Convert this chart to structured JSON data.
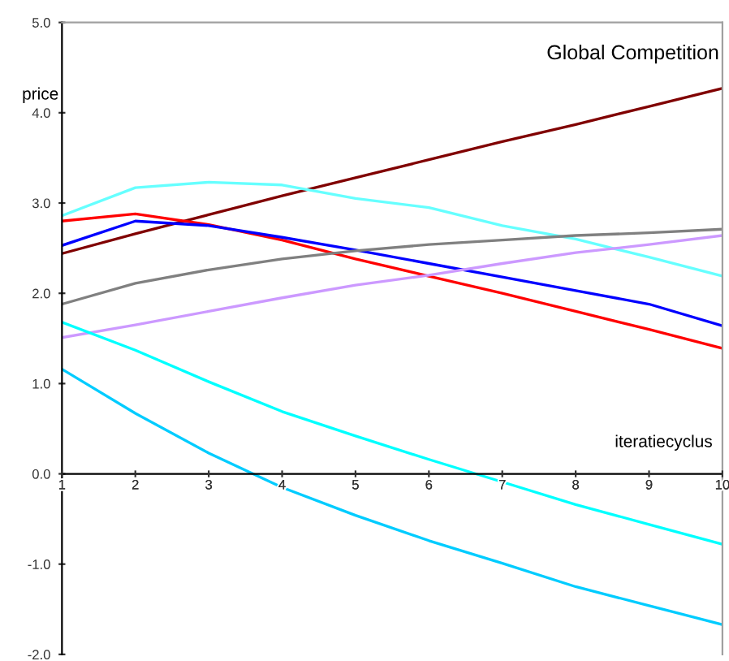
{
  "chart_data": {
    "type": "line",
    "title": "Global Competition",
    "xlabel": "iteratiecyclus",
    "ylabel": "price",
    "x": [
      1,
      2,
      3,
      4,
      5,
      6,
      7,
      8,
      9,
      10
    ],
    "series": [
      {
        "color": "#800000",
        "values": [
          2.44,
          2.66,
          2.87,
          3.08,
          3.28,
          3.48,
          3.68,
          3.87,
          4.07,
          4.27
        ]
      },
      {
        "color": "#66ffff",
        "values": [
          2.86,
          3.17,
          3.23,
          3.2,
          3.05,
          2.95,
          2.75,
          2.6,
          2.4,
          2.19
        ]
      },
      {
        "color": "#ff0000",
        "values": [
          2.8,
          2.88,
          2.76,
          2.59,
          2.38,
          2.19,
          2.0,
          1.8,
          1.6,
          1.39
        ]
      },
      {
        "color": "#0000ff",
        "values": [
          2.53,
          2.8,
          2.75,
          2.62,
          2.48,
          2.33,
          2.18,
          2.03,
          1.88,
          1.64
        ]
      },
      {
        "color": "#808080",
        "values": [
          1.88,
          2.11,
          2.26,
          2.38,
          2.47,
          2.54,
          2.59,
          2.64,
          2.67,
          2.71
        ]
      },
      {
        "color": "#cc99ff",
        "values": [
          1.51,
          1.65,
          1.8,
          1.95,
          2.09,
          2.2,
          2.33,
          2.45,
          2.54,
          2.64
        ]
      },
      {
        "color": "#00ffff",
        "values": [
          1.68,
          1.37,
          1.02,
          0.69,
          0.42,
          0.16,
          -0.09,
          -0.34,
          -0.56,
          -0.78
        ]
      },
      {
        "color": "#00ccff",
        "values": [
          1.16,
          0.67,
          0.23,
          -0.15,
          -0.46,
          -0.74,
          -0.99,
          -1.25,
          -1.46,
          -1.67
        ]
      }
    ],
    "xlim": [
      1,
      10
    ],
    "ylim": [
      -2,
      5
    ],
    "xticks": [
      1,
      2,
      3,
      4,
      5,
      6,
      7,
      8,
      9,
      10
    ],
    "yticks": [
      {
        "value": -2,
        "label": "-2.0"
      },
      {
        "value": -1,
        "label": "-1.0"
      },
      {
        "value": 0,
        "label": "0.0"
      },
      {
        "value": 1,
        "label": "1.0"
      },
      {
        "value": 2,
        "label": "2.0"
      },
      {
        "value": 3,
        "label": "3.0"
      },
      {
        "value": 4,
        "label": "4.0"
      },
      {
        "value": 5,
        "label": "5.0"
      }
    ],
    "grid": false,
    "marker": "none",
    "line_style": "solid"
  }
}
